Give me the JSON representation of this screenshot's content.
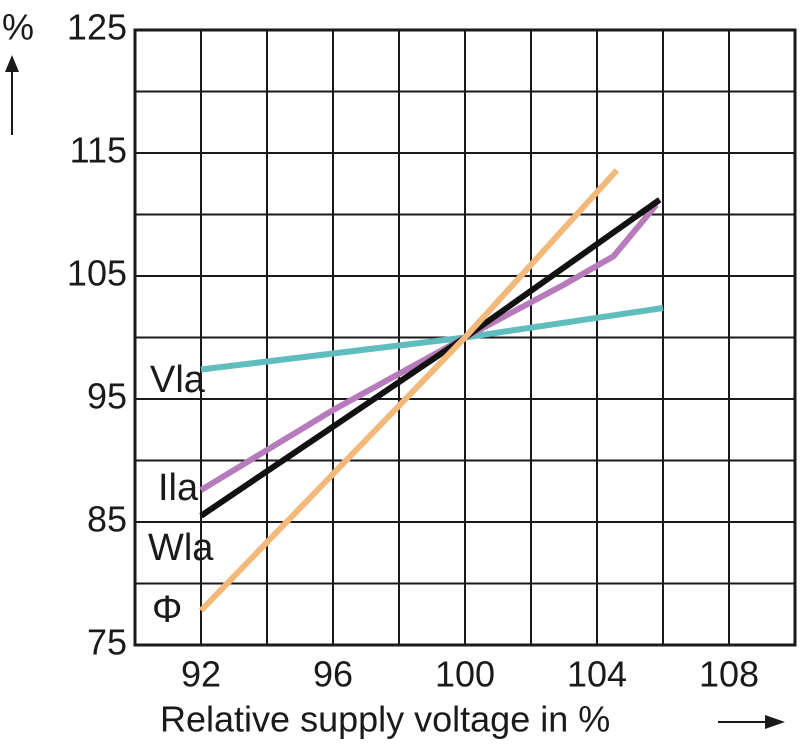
{
  "chart_data": {
    "type": "line",
    "y_label": "%",
    "x_label": "Relative supply voltage in %",
    "xlim": [
      90,
      110
    ],
    "ylim": [
      75,
      125
    ],
    "xticks": [
      92,
      96,
      100,
      104,
      108
    ],
    "yticks": [
      75,
      85,
      95,
      105,
      115,
      125
    ],
    "xgrid": [
      90,
      92,
      94,
      96,
      98,
      100,
      102,
      104,
      106,
      108,
      110
    ],
    "ygrid": [
      75,
      80,
      85,
      90,
      95,
      100,
      105,
      110,
      115,
      120,
      125
    ],
    "series": [
      {
        "name": "Vla",
        "color": "#5fbdbd",
        "x": [
          92,
          100,
          106
        ],
        "values": [
          97.4,
          100,
          102.4
        ]
      },
      {
        "name": "Ila",
        "color": "#b77bbb",
        "x": [
          92,
          96,
          100,
          103,
          104.5,
          105.8
        ],
        "values": [
          87.6,
          94.1,
          100,
          104.3,
          106.6,
          110.8
        ]
      },
      {
        "name": "Wla",
        "color": "#111111",
        "x": [
          92,
          100,
          105.9
        ],
        "values": [
          85.5,
          100,
          111.2
        ]
      },
      {
        "name": "Φ",
        "color": "#f3b97a",
        "x": [
          92,
          100,
          104.6
        ],
        "values": [
          77.8,
          100,
          113.6
        ]
      }
    ]
  }
}
